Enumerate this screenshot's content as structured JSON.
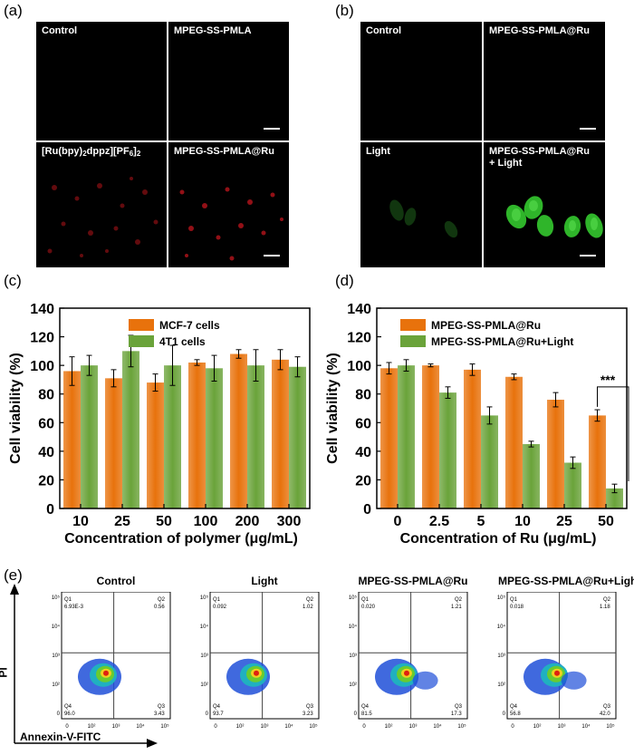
{
  "panel_labels": {
    "a": "(a)",
    "b": "(b)",
    "c": "(c)",
    "d": "(d)",
    "e": "(e)"
  },
  "micrographs": {
    "a": [
      {
        "label": "Control",
        "signal": "none"
      },
      {
        "label": "MPEG-SS-PMLA",
        "signal": "none"
      },
      {
        "label": "[Ru(bpy)₂dppz][PF₆]₂",
        "signal": "red"
      },
      {
        "label": "MPEG-SS-PMLA@Ru",
        "signal": "red"
      }
    ],
    "b": [
      {
        "label": "Control",
        "signal": "none"
      },
      {
        "label": "MPEG-SS-PMLA@Ru",
        "signal": "none"
      },
      {
        "label": "Light",
        "signal": "faint-green"
      },
      {
        "label": "MPEG-SS-PMLA@Ru",
        "label2": "+ Light",
        "signal": "green"
      }
    ]
  },
  "colors": {
    "orange": "#E8720C",
    "green": "#6AA33A",
    "red_signal": "#c0141a",
    "green_signal": "#33c02a"
  },
  "chart_data": [
    {
      "type": "bar",
      "panel": "c",
      "categories": [
        "10",
        "25",
        "50",
        "100",
        "200",
        "300"
      ],
      "series": [
        {
          "name": "MCF-7 cells",
          "values": [
            96,
            91,
            88,
            102,
            108,
            104
          ],
          "errors": [
            10,
            6,
            6,
            2,
            3,
            7
          ]
        },
        {
          "name": "4T1 cells",
          "values": [
            100,
            110,
            100,
            98,
            100,
            99
          ],
          "errors": [
            7,
            11,
            14,
            9,
            11,
            7
          ]
        }
      ],
      "xlabel": "Concentration of polymer (μg/mL)",
      "ylabel": "Cell viability (%)",
      "ylim": [
        0,
        140
      ],
      "yticks": [
        "0",
        "20",
        "40",
        "60",
        "80",
        "100",
        "120",
        "140"
      ],
      "legend": "top-center"
    },
    {
      "type": "bar",
      "panel": "d",
      "categories": [
        "0",
        "2.5",
        "5",
        "10",
        "25",
        "50"
      ],
      "series": [
        {
          "name": "MPEG-SS-PMLA@Ru",
          "values": [
            98,
            100,
            97,
            92,
            76,
            65
          ],
          "errors": [
            4,
            1,
            4,
            2,
            5,
            4
          ]
        },
        {
          "name": "MPEG-SS-PMLA@Ru+Light",
          "values": [
            100,
            81,
            65,
            45,
            32,
            14
          ],
          "errors": [
            4,
            4,
            6,
            2,
            4,
            3
          ]
        }
      ],
      "xlabel": "Concentration of Ru (μg/mL)",
      "ylabel": "Cell viability (%)",
      "ylim": [
        0,
        140
      ],
      "yticks": [
        "0",
        "20",
        "40",
        "60",
        "80",
        "100",
        "120",
        "140"
      ],
      "annotation": "***",
      "legend": "top-left"
    }
  ],
  "flow": {
    "xlabel": "Annexin-V-FITC",
    "ylabel": "PI",
    "ticks": [
      "0",
      "10²",
      "10³",
      "10⁴",
      "10⁵"
    ],
    "plots": [
      {
        "title": "Control",
        "q1": "6.93E-3",
        "q2": "0.56",
        "q3": "3.43",
        "q4": "96.0"
      },
      {
        "title": "Light",
        "q1": "0.092",
        "q2": "1.02",
        "q3": "3.23",
        "q4": "93.7"
      },
      {
        "title": "MPEG-SS-PMLA@Ru",
        "q1": "0.020",
        "q2": "1.21",
        "q3": "17.3",
        "q4": "81.5"
      },
      {
        "title": "MPEG-SS-PMLA@Ru+Light",
        "q1": "0.018",
        "q2": "1.18",
        "q3": "42.0",
        "q4": "56.8"
      }
    ],
    "q_names": {
      "q1": "Q1",
      "q2": "Q2",
      "q3": "Q3",
      "q4": "Q4"
    }
  }
}
